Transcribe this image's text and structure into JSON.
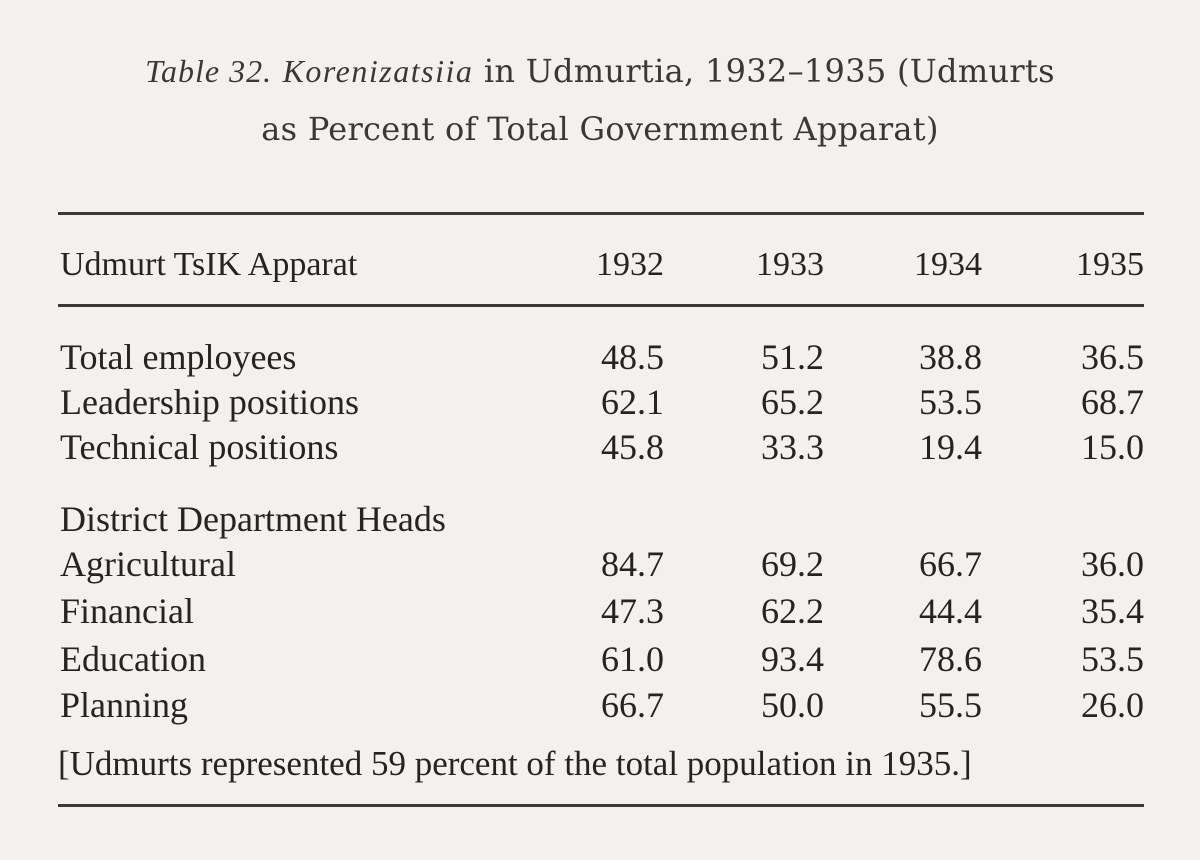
{
  "caption": {
    "label": "Table 32.",
    "term": "Korenizatsiia",
    "rest_line1": " in Udmurtia, 1932–1935 (Udmurts",
    "line2": "as Percent of Total Government Apparat)"
  },
  "table": {
    "header": {
      "label": "Udmurt TsIK Apparat",
      "years": [
        "1932",
        "1933",
        "1934",
        "1935"
      ]
    },
    "rows": [
      {
        "label": "Total employees",
        "values": [
          "48.5",
          "51.2",
          "38.8",
          "36.5"
        ]
      },
      {
        "label": "Leadership positions",
        "values": [
          "62.1",
          "65.2",
          "53.5",
          "68.7"
        ]
      },
      {
        "label": "Technical positions",
        "values": [
          "45.8",
          "33.3",
          "19.4",
          "15.0"
        ]
      }
    ],
    "section_heading": "District Department Heads",
    "section_rows": [
      {
        "label": "Agricultural",
        "values": [
          "84.7",
          "69.2",
          "66.7",
          "36.0"
        ]
      },
      {
        "label": "Financial",
        "values": [
          "47.3",
          "62.2",
          "44.4",
          "35.4"
        ]
      },
      {
        "label": "Education",
        "values": [
          "61.0",
          "93.4",
          "78.6",
          "53.5"
        ]
      },
      {
        "label": "Planning",
        "values": [
          "66.7",
          "50.0",
          "55.5",
          "26.0"
        ]
      }
    ]
  },
  "footnote": "[Udmurts represented 59 percent of the total population in 1935.]"
}
